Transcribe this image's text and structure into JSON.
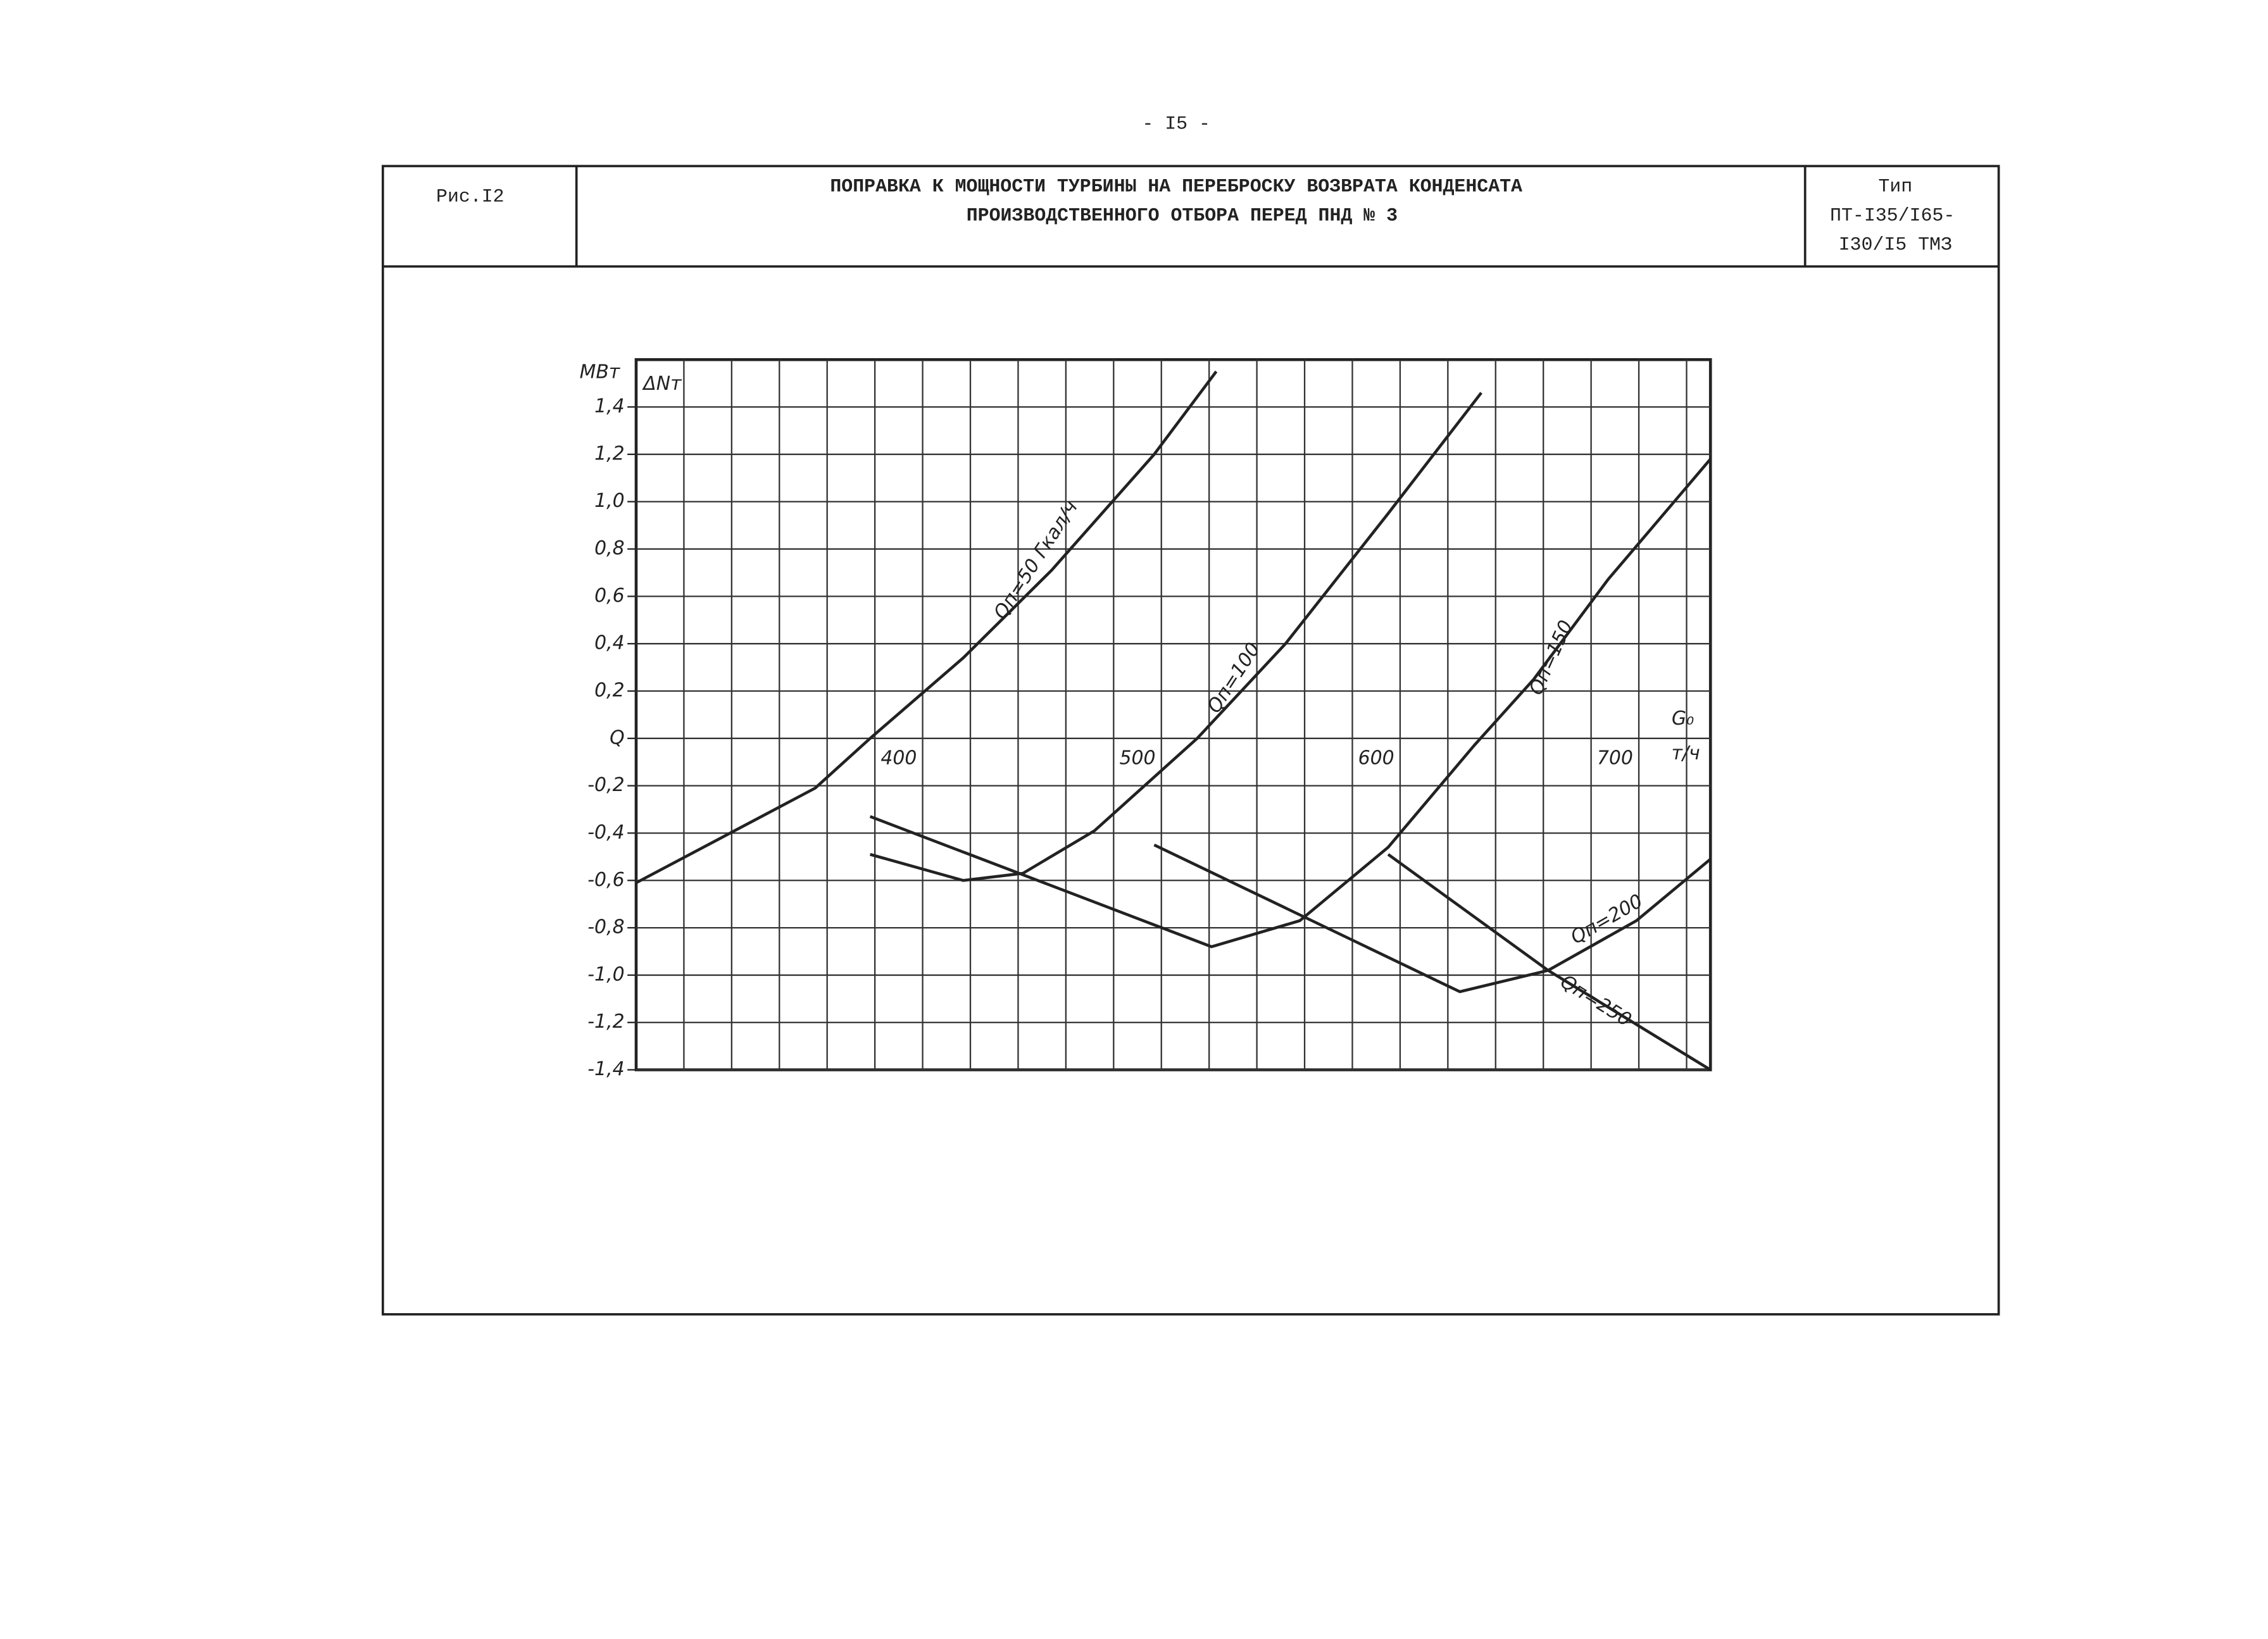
{
  "header": {
    "page_number": "- I5 -",
    "figure": "Рис.I2",
    "title_lines": [
      "ПОПРАВКА К МОЩНОСТИ ТУРБИНЫ НА ПЕРЕБРОСКУ ВОЗВРАТА КОНДЕНСАТА",
      "ПРОИЗВОДСТВЕННОГО ОТБОРА ПЕРЕД ПНД № 3"
    ],
    "type_lines": [
      "Тип",
      "ПТ-I35/I65-",
      "I30/I5  ТМЗ"
    ]
  },
  "chart_data": {
    "type": "line",
    "y_unit": "МВт",
    "y_label": "ΔNт",
    "x_label": "G₀",
    "x_unit": "т/ч",
    "xlim": [
      300,
      750
    ],
    "ylim": [
      -1.4,
      1.6
    ],
    "grid": true,
    "xticks": [
      400,
      500,
      600,
      700
    ],
    "yticks": [
      {
        "value": -1.4,
        "label": "-1,4"
      },
      {
        "value": -1.2,
        "label": "-1,2"
      },
      {
        "value": -1.0,
        "label": "-1,0"
      },
      {
        "value": -0.8,
        "label": "-0,8"
      },
      {
        "value": -0.6,
        "label": "-0,6"
      },
      {
        "value": -0.4,
        "label": "-0,4"
      },
      {
        "value": -0.2,
        "label": "-0,2"
      },
      {
        "value": 0,
        "label": "Q"
      },
      {
        "value": 0.2,
        "label": "0,2"
      },
      {
        "value": 0.4,
        "label": "0,4"
      },
      {
        "value": 0.6,
        "label": "0,6"
      },
      {
        "value": 0.8,
        "label": "0,8"
      },
      {
        "value": 1.0,
        "label": "1,0"
      },
      {
        "value": 1.2,
        "label": "1,2"
      },
      {
        "value": 1.4,
        "label": "1,4"
      }
    ],
    "series": [
      {
        "name": "Qп=50 Гкал/ч",
        "color": "#222222",
        "x": [
          300,
          375,
          398,
          437,
          474,
          517,
          543
        ],
        "values": [
          -0.61,
          -0.21,
          0,
          0.34,
          0.71,
          1.2,
          1.55
        ]
      },
      {
        "name": "Qп=100",
        "color": "#222222",
        "x": [
          398,
          437,
          462,
          492,
          535,
          572,
          615,
          654
        ],
        "values": [
          -0.49,
          -0.6,
          -0.57,
          -0.39,
          0,
          0.4,
          0.95,
          1.46
        ]
      },
      {
        "name": "Qп=150",
        "color": "#222222",
        "x": [
          398,
          541,
          578,
          615,
          651,
          676,
          707,
          750
        ],
        "values": [
          -0.33,
          -0.88,
          -0.77,
          -0.46,
          -0.03,
          0.25,
          0.67,
          1.18
        ]
      },
      {
        "name": "Qп=200",
        "color": "#222222",
        "x": [
          517,
          645,
          682,
          719,
          750
        ],
        "values": [
          -0.45,
          -1.07,
          -0.98,
          -0.77,
          -0.51
        ]
      },
      {
        "name": "Qп=250",
        "color": "#222222",
        "x": [
          615,
          682,
          750
        ],
        "values": [
          -0.49,
          -0.98,
          -1.4
        ]
      }
    ]
  }
}
